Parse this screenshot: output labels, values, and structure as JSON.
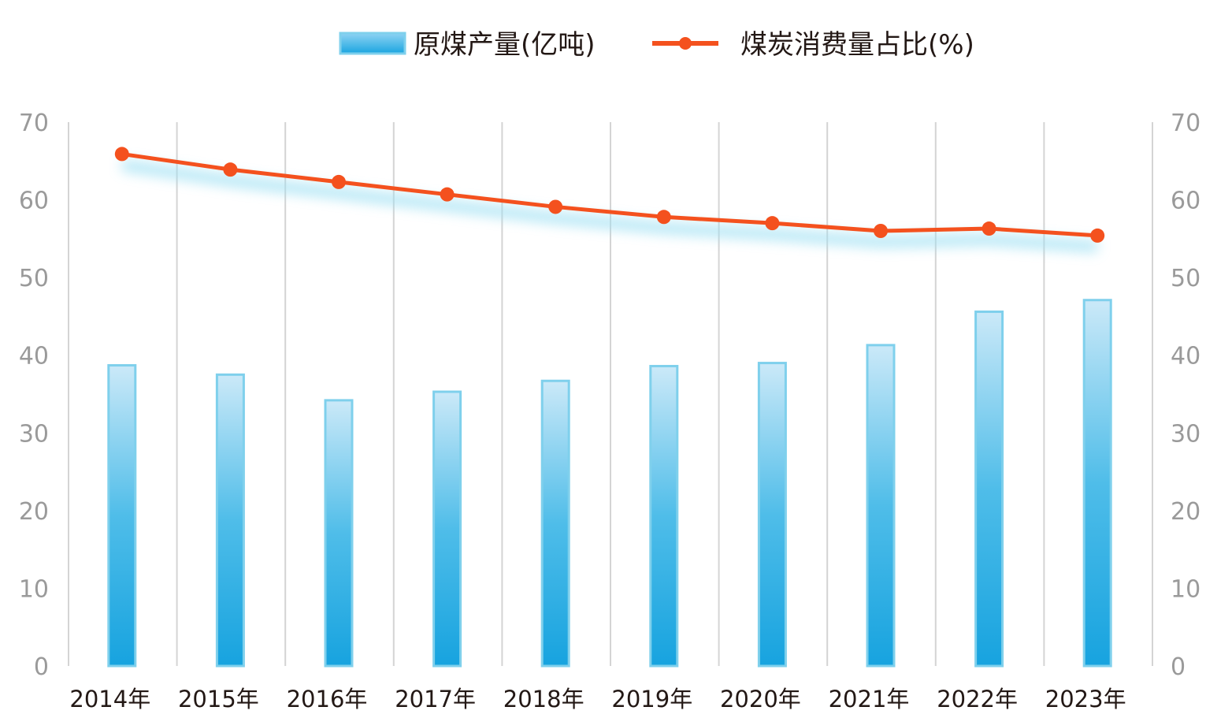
{
  "chart_data": {
    "type": "bar+line",
    "categories": [
      "2014年",
      "2015年",
      "2016年",
      "2017年",
      "2018年",
      "2019年",
      "2020年",
      "2021年",
      "2022年",
      "2023年"
    ],
    "series": [
      {
        "name": "原煤产量(亿吨)",
        "type": "bar",
        "axis": "left",
        "color": "#29abe2",
        "values": [
          38.7,
          37.5,
          34.2,
          35.3,
          36.7,
          38.6,
          39.0,
          41.3,
          45.6,
          47.1
        ]
      },
      {
        "name": "煤炭消费量占比(%)",
        "type": "line",
        "axis": "right",
        "color": "#f4511e",
        "values": [
          65.9,
          63.9,
          62.3,
          60.7,
          59.1,
          57.8,
          57.0,
          56.0,
          56.3,
          55.4
        ]
      }
    ],
    "y_left": {
      "range": [
        0,
        70
      ],
      "ticks": [
        0,
        10,
        20,
        30,
        40,
        50,
        60,
        70
      ]
    },
    "y_right": {
      "range": [
        0,
        70
      ],
      "ticks": [
        0,
        10,
        20,
        30,
        40,
        50,
        60,
        70
      ]
    },
    "grid": "vertical",
    "legend": "top-center"
  }
}
